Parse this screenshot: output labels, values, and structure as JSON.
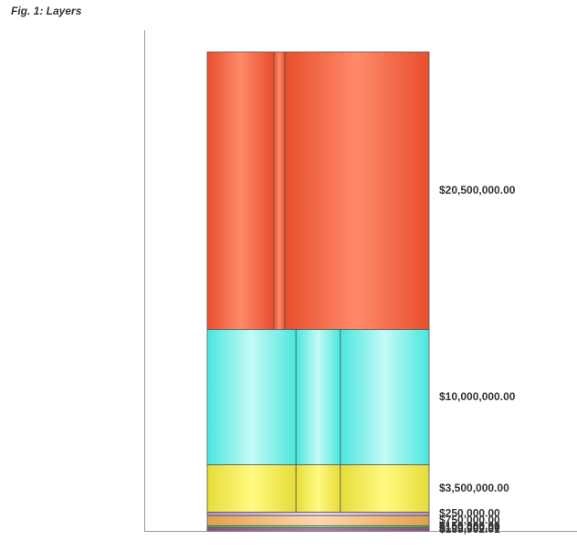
{
  "chart_data": {
    "type": "tower",
    "title": "Fig. 1: Layers",
    "ylim": [
      0,
      37000000
    ],
    "layers": [
      {
        "value": 133902.01,
        "value_label": "$133,902.01",
        "shares": [
          100
        ],
        "color": [
          "#c05090",
          "#f0a0d0"
        ]
      },
      {
        "value": 100000,
        "value_label": "$100,000.00",
        "shares": [
          100
        ],
        "color": [
          "#8a60c0",
          "#c8a8f0"
        ]
      },
      {
        "value": 150000,
        "value_label": "$150,000.00",
        "shares": [
          100
        ],
        "color": [
          "#50b050",
          "#a8e8a0"
        ]
      },
      {
        "value": 750000,
        "value_label": "$750,000.00",
        "shares": [
          100
        ],
        "color": [
          "#e0a050",
          "#ffd8b0"
        ]
      },
      {
        "value": 250000,
        "value_label": "$250,000.00",
        "shares": [
          100
        ],
        "color": [
          "#b090d0",
          "#e8d8f8"
        ]
      },
      {
        "value": 3500000,
        "value_label": "$3,500,000.00",
        "shares": [
          40,
          20,
          40
        ],
        "color": [
          "#e6dc3a",
          "#fffa80"
        ]
      },
      {
        "value": 10000000,
        "value_label": "$10,000,000.00",
        "shares": [
          40,
          20,
          40
        ],
        "color": [
          "#4ae6de",
          "#c4faf6"
        ]
      },
      {
        "value": 20500000,
        "value_label": "$20,500,000.00",
        "shares": [
          30,
          5,
          65
        ],
        "color": [
          "#e84e2c",
          "#ff8a6a"
        ]
      }
    ]
  }
}
